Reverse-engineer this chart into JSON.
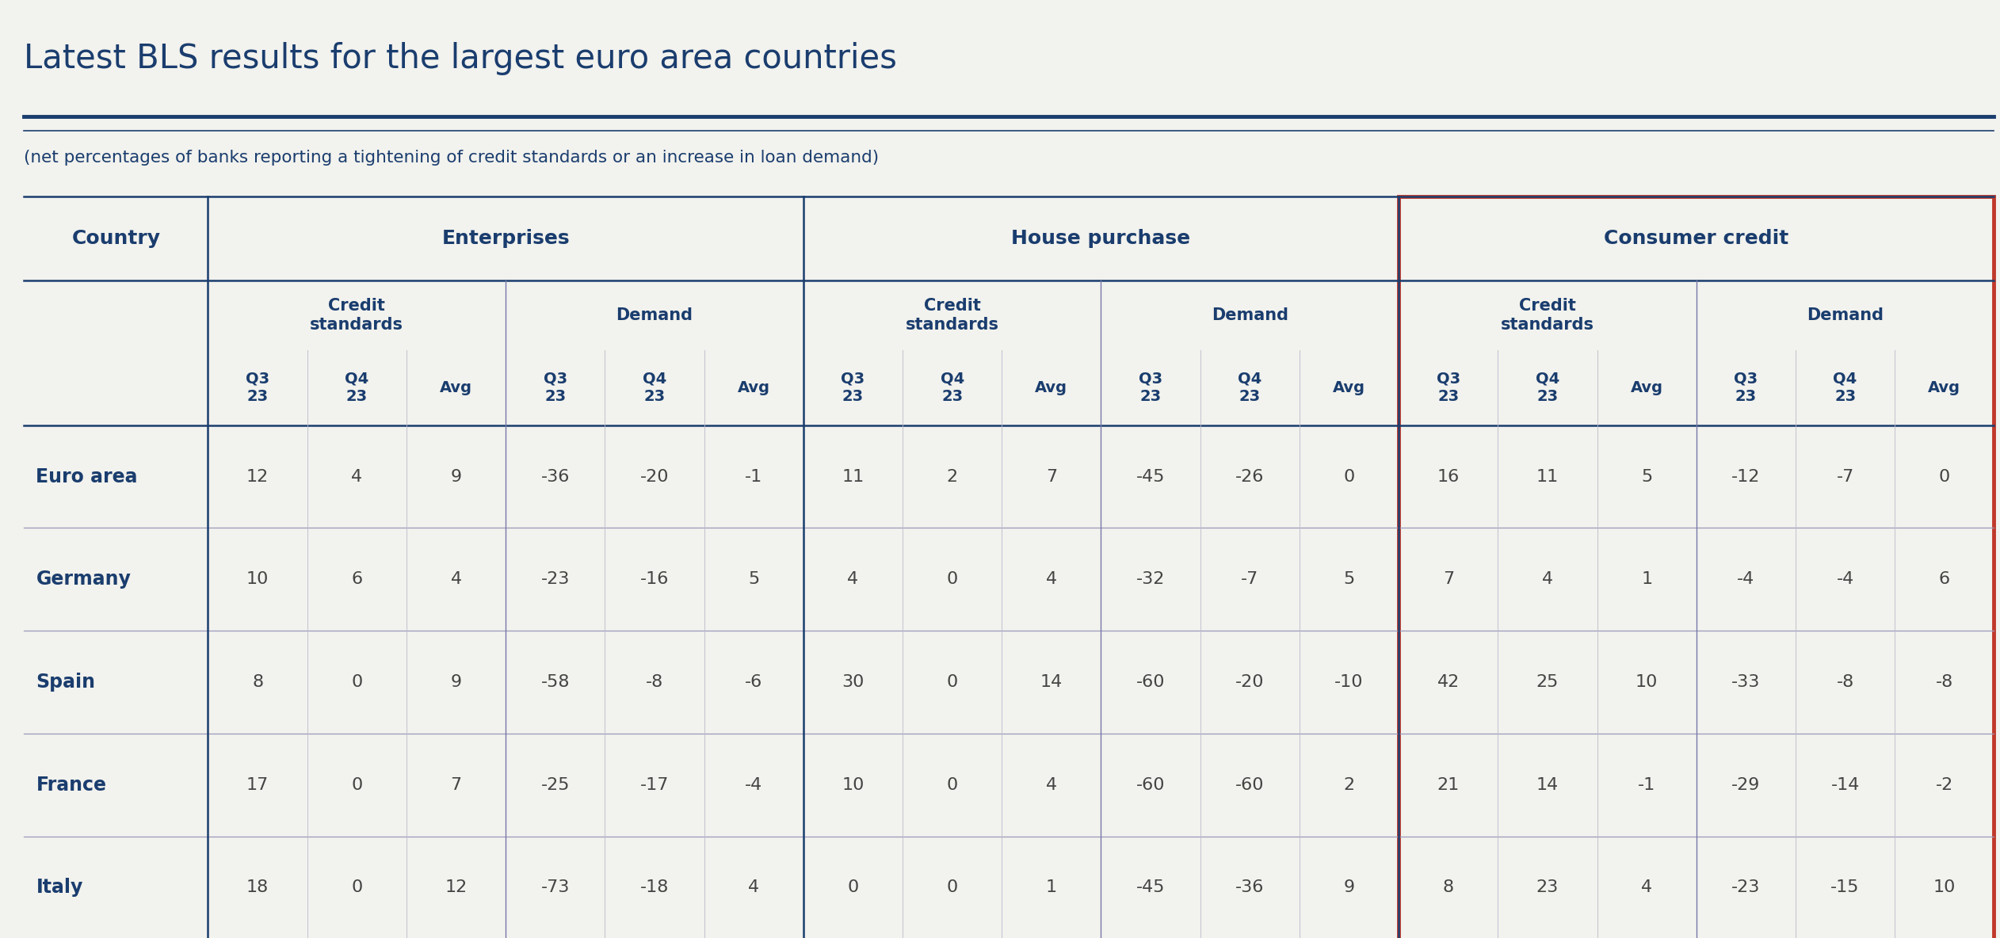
{
  "title": "Latest BLS results for the largest euro area countries",
  "subtitle": "(net percentages of banks reporting a tightening of credit standards or an increase in loan demand)",
  "background_color": "#f2f2ee",
  "text_color": "#1a3d6e",
  "cell_text_color": "#444444",
  "consumer_credit_box_color": "#c0392b",
  "rows": [
    {
      "country": "Euro area",
      "data": [
        12,
        4,
        9,
        -36,
        -20,
        -1,
        11,
        2,
        7,
        -45,
        -26,
        0,
        16,
        11,
        5,
        -12,
        -7,
        0
      ]
    },
    {
      "country": "Germany",
      "data": [
        10,
        6,
        4,
        -23,
        -16,
        5,
        4,
        0,
        4,
        -32,
        -7,
        5,
        7,
        4,
        1,
        -4,
        -4,
        6
      ]
    },
    {
      "country": "Spain",
      "data": [
        8,
        0,
        9,
        -58,
        -8,
        -6,
        30,
        0,
        14,
        -60,
        -20,
        -10,
        42,
        25,
        10,
        -33,
        -8,
        -8
      ]
    },
    {
      "country": "France",
      "data": [
        17,
        0,
        7,
        -25,
        -17,
        -4,
        10,
        0,
        4,
        -60,
        -60,
        2,
        21,
        14,
        -1,
        -29,
        -14,
        -2
      ]
    },
    {
      "country": "Italy",
      "data": [
        18,
        0,
        12,
        -73,
        -18,
        4,
        0,
        0,
        1,
        -45,
        -36,
        9,
        8,
        23,
        4,
        -23,
        -15,
        10
      ]
    }
  ]
}
